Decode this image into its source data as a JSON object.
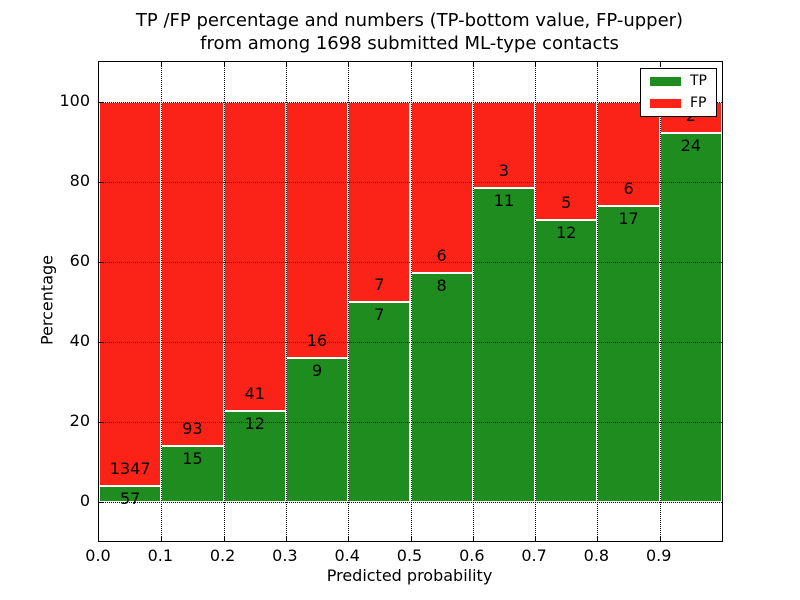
{
  "title": {
    "line1": "TP /FP percentage and numbers (TP-bottom value, FP-upper)",
    "line2": "from among 1698 submitted ML-type contacts"
  },
  "chart_data": {
    "type": "bar",
    "stacked": true,
    "normalized": "percent",
    "title": "TP /FP percentage and numbers (TP-bottom value, FP-upper) from among 1698 submitted ML-type contacts",
    "xlabel": "Predicted probability",
    "ylabel": "Percentage",
    "xlim": [
      0.0,
      1.0
    ],
    "ylim": [
      -9.75,
      110
    ],
    "grid": "dotted",
    "bin_width": 0.1,
    "categories": [
      "0.0-0.1",
      "0.1-0.2",
      "0.2-0.3",
      "0.3-0.4",
      "0.4-0.5",
      "0.5-0.6",
      "0.6-0.7",
      "0.7-0.8",
      "0.8-0.9",
      "0.9-1.0"
    ],
    "series": [
      {
        "name": "TP",
        "counts": [
          57,
          15,
          12,
          9,
          7,
          8,
          11,
          12,
          17,
          24
        ],
        "color": "#1e8c1e"
      },
      {
        "name": "FP",
        "counts": [
          1347,
          93,
          41,
          16,
          7,
          6,
          3,
          5,
          6,
          2
        ],
        "color": "#fb2318"
      }
    ],
    "bins": [
      {
        "tp": 57,
        "fp": 1347
      },
      {
        "tp": 15,
        "fp": 93
      },
      {
        "tp": 12,
        "fp": 41
      },
      {
        "tp": 9,
        "fp": 16
      },
      {
        "tp": 7,
        "fp": 7
      },
      {
        "tp": 8,
        "fp": 6
      },
      {
        "tp": 11,
        "fp": 3
      },
      {
        "tp": 12,
        "fp": 5
      },
      {
        "tp": 17,
        "fp": 6
      },
      {
        "tp": 24,
        "fp": 2
      }
    ],
    "x_ticks": [
      "0.0",
      "0.1",
      "0.2",
      "0.3",
      "0.4",
      "0.5",
      "0.6",
      "0.7",
      "0.8",
      "0.9"
    ],
    "y_ticks": [
      "0",
      "20",
      "40",
      "60",
      "80",
      "100"
    ],
    "legend": {
      "position": "upper right",
      "entries": [
        {
          "label": "TP",
          "color": "#1e8c1e"
        },
        {
          "label": "FP",
          "color": "#fb2318"
        }
      ]
    },
    "colors": {
      "tp": "#1e8c1e",
      "fp": "#fb2318",
      "grid": "#000000",
      "background": "#ffffff",
      "text": "#000000"
    }
  }
}
